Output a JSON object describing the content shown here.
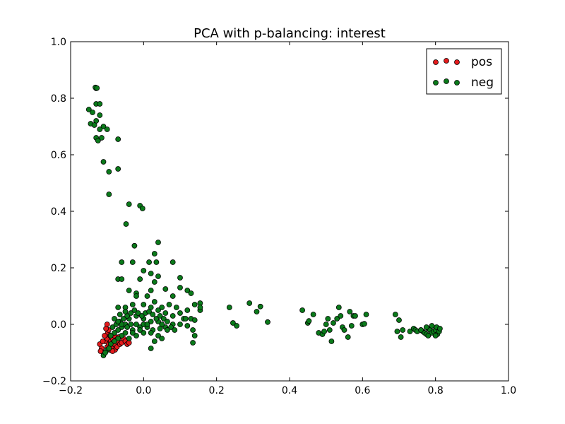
{
  "chart_data": {
    "type": "scatter",
    "title": "PCA with p-balancing: interest",
    "xlabel": "",
    "ylabel": "",
    "xlim": [
      -0.2,
      1.0
    ],
    "ylim": [
      -0.2,
      1.0
    ],
    "xticks": [
      -0.2,
      0.0,
      0.2,
      0.4,
      0.6,
      0.8,
      1.0
    ],
    "yticks": [
      -0.2,
      0.0,
      0.2,
      0.4,
      0.6,
      0.8,
      1.0
    ],
    "xtick_labels": [
      "−0.2",
      "0.0",
      "0.2",
      "0.4",
      "0.6",
      "0.8",
      "1.0"
    ],
    "ytick_labels": [
      "−0.2",
      "0.0",
      "0.2",
      "0.4",
      "0.6",
      "0.8",
      "1.0"
    ],
    "grid": false,
    "legend_position": "top-right",
    "series": [
      {
        "name": "pos",
        "color": "#e41a1c",
        "points": [
          [
            -0.12,
            -0.07
          ],
          [
            -0.115,
            -0.085
          ],
          [
            -0.11,
            -0.1
          ],
          [
            -0.105,
            -0.06
          ],
          [
            -0.1,
            -0.08
          ],
          [
            -0.1,
            -0.05
          ],
          [
            -0.098,
            -0.03
          ],
          [
            -0.096,
            -0.02
          ],
          [
            -0.095,
            -0.07
          ],
          [
            -0.094,
            -0.09
          ],
          [
            -0.092,
            -0.04
          ],
          [
            -0.09,
            -0.06
          ],
          [
            -0.088,
            -0.075
          ],
          [
            -0.087,
            -0.085
          ],
          [
            -0.085,
            -0.05
          ],
          [
            -0.083,
            -0.065
          ],
          [
            -0.08,
            -0.04
          ],
          [
            -0.08,
            -0.07
          ],
          [
            -0.078,
            -0.09
          ],
          [
            -0.075,
            -0.055
          ],
          [
            -0.073,
            -0.08
          ],
          [
            -0.07,
            -0.06
          ],
          [
            -0.068,
            -0.045
          ],
          [
            -0.065,
            -0.07
          ],
          [
            -0.06,
            -0.065
          ],
          [
            -0.055,
            -0.05
          ],
          [
            -0.05,
            -0.06
          ],
          [
            -0.045,
            -0.07
          ],
          [
            -0.04,
            -0.065
          ],
          [
            -0.1,
            0.0
          ],
          [
            -0.103,
            -0.015
          ],
          [
            -0.107,
            -0.04
          ],
          [
            -0.112,
            -0.06
          ],
          [
            -0.118,
            -0.095
          ],
          [
            -0.085,
            -0.095
          ]
        ]
      },
      {
        "name": "neg",
        "color": "#0a7a1a",
        "points": [
          [
            -0.13,
            0.835
          ],
          [
            -0.132,
            0.838
          ],
          [
            -0.128,
            0.836
          ],
          [
            -0.15,
            0.76
          ],
          [
            -0.14,
            0.75
          ],
          [
            -0.13,
            0.78
          ],
          [
            -0.12,
            0.78
          ],
          [
            -0.13,
            0.72
          ],
          [
            -0.12,
            0.74
          ],
          [
            -0.11,
            0.7
          ],
          [
            -0.12,
            0.69
          ],
          [
            -0.1,
            0.69
          ],
          [
            -0.13,
            0.66
          ],
          [
            -0.125,
            0.65
          ],
          [
            -0.115,
            0.66
          ],
          [
            -0.145,
            0.71
          ],
          [
            -0.135,
            0.705
          ],
          [
            -0.07,
            0.655
          ],
          [
            -0.11,
            0.575
          ],
          [
            -0.095,
            0.54
          ],
          [
            -0.07,
            0.55
          ],
          [
            -0.095,
            0.46
          ],
          [
            -0.04,
            0.425
          ],
          [
            -0.01,
            0.42
          ],
          [
            -0.003,
            0.41
          ],
          [
            -0.048,
            0.355
          ],
          [
            -0.025,
            0.278
          ],
          [
            0.04,
            0.29
          ],
          [
            0.03,
            0.25
          ],
          [
            -0.06,
            0.22
          ],
          [
            -0.03,
            0.22
          ],
          [
            0.015,
            0.22
          ],
          [
            0.035,
            0.22
          ],
          [
            0.08,
            0.22
          ],
          [
            0.0,
            0.19
          ],
          [
            0.02,
            0.18
          ],
          [
            0.04,
            0.17
          ],
          [
            0.1,
            0.165
          ],
          [
            -0.07,
            0.16
          ],
          [
            -0.06,
            0.16
          ],
          [
            -0.01,
            0.16
          ],
          [
            0.03,
            0.15
          ],
          [
            0.1,
            0.13
          ],
          [
            0.12,
            0.12
          ],
          [
            0.06,
            0.125
          ],
          [
            -0.04,
            0.12
          ],
          [
            -0.02,
            0.11
          ],
          [
            0.02,
            0.12
          ],
          [
            0.08,
            0.1
          ],
          [
            0.13,
            0.11
          ],
          [
            0.155,
            0.075
          ],
          [
            0.14,
            0.07
          ],
          [
            0.155,
            0.05
          ],
          [
            0.155,
            0.06
          ],
          [
            0.12,
            0.05
          ],
          [
            0.1,
            0.04
          ],
          [
            0.09,
            0.06
          ],
          [
            0.07,
            0.07
          ],
          [
            0.05,
            0.06
          ],
          [
            0.03,
            0.08
          ],
          [
            0.01,
            0.1
          ],
          [
            -0.02,
            0.1
          ],
          [
            -0.03,
            0.07
          ],
          [
            -0.07,
            0.06
          ],
          [
            -0.05,
            0.06
          ],
          [
            0.0,
            0.07
          ],
          [
            0.02,
            0.06
          ],
          [
            0.04,
            0.05
          ],
          [
            0.06,
            0.04
          ],
          [
            0.08,
            0.03
          ],
          [
            0.11,
            0.02
          ],
          [
            0.13,
            0.02
          ],
          [
            0.14,
            0.015
          ],
          [
            0.12,
            -0.005
          ],
          [
            0.115,
            0.02
          ],
          [
            0.135,
            -0.02
          ],
          [
            0.14,
            -0.04
          ],
          [
            0.135,
            -0.065
          ],
          [
            0.1,
            0.0
          ],
          [
            0.08,
            0.0
          ],
          [
            0.06,
            -0.01
          ],
          [
            0.05,
            0.0
          ],
          [
            0.04,
            0.01
          ],
          [
            0.02,
            0.01
          ],
          [
            0.0,
            0.02
          ],
          [
            -0.02,
            0.03
          ],
          [
            -0.04,
            0.02
          ],
          [
            -0.05,
            0.0
          ],
          [
            -0.06,
            -0.01
          ],
          [
            -0.07,
            -0.02
          ],
          [
            -0.08,
            -0.03
          ],
          [
            -0.09,
            -0.04
          ],
          [
            -0.085,
            -0.01
          ],
          [
            -0.075,
            0.0
          ],
          [
            -0.065,
            0.01
          ],
          [
            -0.055,
            0.02
          ],
          [
            -0.045,
            0.03
          ],
          [
            -0.035,
            0.04
          ],
          [
            -0.025,
            0.05
          ],
          [
            -0.015,
            0.04
          ],
          [
            -0.005,
            0.03
          ],
          [
            0.005,
            0.04
          ],
          [
            0.015,
            0.045
          ],
          [
            0.025,
            0.035
          ],
          [
            0.035,
            0.02
          ],
          [
            0.045,
            0.03
          ],
          [
            0.055,
            0.02
          ],
          [
            0.065,
            0.01
          ],
          [
            0.075,
            -0.01
          ],
          [
            0.085,
            -0.02
          ],
          [
            0.065,
            -0.02
          ],
          [
            0.045,
            -0.015
          ],
          [
            0.025,
            -0.02
          ],
          [
            0.01,
            -0.01
          ],
          [
            -0.01,
            -0.01
          ],
          [
            -0.03,
            -0.02
          ],
          [
            -0.05,
            -0.03
          ],
          [
            -0.06,
            -0.04
          ],
          [
            -0.07,
            -0.05
          ],
          [
            -0.08,
            -0.06
          ],
          [
            -0.09,
            -0.07
          ],
          [
            -0.1,
            -0.09
          ],
          [
            -0.11,
            -0.11
          ],
          [
            -0.105,
            -0.1
          ],
          [
            -0.095,
            -0.085
          ],
          [
            -0.04,
            -0.05
          ],
          [
            -0.02,
            -0.04
          ],
          [
            0.0,
            -0.03
          ],
          [
            0.02,
            -0.03
          ],
          [
            0.04,
            -0.04
          ],
          [
            0.03,
            -0.06
          ],
          [
            0.02,
            -0.085
          ],
          [
            0.05,
            -0.05
          ],
          [
            -0.03,
            -0.03
          ],
          [
            -0.01,
            -0.02
          ],
          [
            0.0,
            0.0
          ],
          [
            0.01,
            0.0
          ],
          [
            -0.02,
            0.0
          ],
          [
            -0.035,
            0.0
          ],
          [
            -0.045,
            -0.01
          ],
          [
            -0.06,
            0.0
          ],
          [
            -0.07,
            0.01
          ],
          [
            -0.08,
            0.02
          ],
          [
            -0.065,
            0.035
          ],
          [
            -0.05,
            0.045
          ],
          [
            0.235,
            0.06
          ],
          [
            0.245,
            0.005
          ],
          [
            0.255,
            -0.005
          ],
          [
            0.29,
            0.075
          ],
          [
            0.31,
            0.045
          ],
          [
            0.32,
            0.063
          ],
          [
            0.34,
            0.008
          ],
          [
            0.435,
            0.05
          ],
          [
            0.45,
            0.005
          ],
          [
            0.453,
            0.012
          ],
          [
            0.465,
            0.035
          ],
          [
            0.48,
            -0.03
          ],
          [
            0.49,
            -0.035
          ],
          [
            0.495,
            -0.025
          ],
          [
            0.5,
            0.0
          ],
          [
            0.505,
            0.02
          ],
          [
            0.51,
            -0.02
          ],
          [
            0.515,
            -0.06
          ],
          [
            0.52,
            0.005
          ],
          [
            0.53,
            0.02
          ],
          [
            0.535,
            0.06
          ],
          [
            0.54,
            0.03
          ],
          [
            0.545,
            -0.01
          ],
          [
            0.55,
            -0.02
          ],
          [
            0.56,
            -0.045
          ],
          [
            0.565,
            0.045
          ],
          [
            0.57,
            -0.005
          ],
          [
            0.575,
            0.03
          ],
          [
            0.58,
            0.03
          ],
          [
            0.6,
            0.0
          ],
          [
            0.605,
            0.002
          ],
          [
            0.61,
            0.035
          ],
          [
            0.69,
            0.035
          ],
          [
            0.695,
            -0.025
          ],
          [
            0.7,
            0.015
          ],
          [
            0.705,
            -0.045
          ],
          [
            0.71,
            -0.02
          ],
          [
            0.73,
            -0.025
          ],
          [
            0.74,
            -0.015
          ],
          [
            0.745,
            -0.02
          ],
          [
            0.75,
            -0.025
          ],
          [
            0.76,
            -0.02
          ],
          [
            0.765,
            -0.025
          ],
          [
            0.77,
            -0.03
          ],
          [
            0.775,
            -0.035
          ],
          [
            0.78,
            -0.015
          ],
          [
            0.785,
            -0.02
          ],
          [
            0.79,
            -0.03
          ],
          [
            0.795,
            -0.025
          ],
          [
            0.8,
            -0.02
          ],
          [
            0.803,
            -0.01
          ],
          [
            0.805,
            -0.035
          ],
          [
            0.81,
            -0.025
          ],
          [
            0.812,
            -0.015
          ],
          [
            0.8,
            -0.04
          ],
          [
            0.78,
            -0.04
          ],
          [
            0.76,
            -0.02
          ],
          [
            0.775,
            -0.01
          ],
          [
            0.79,
            -0.005
          ]
        ]
      }
    ]
  }
}
